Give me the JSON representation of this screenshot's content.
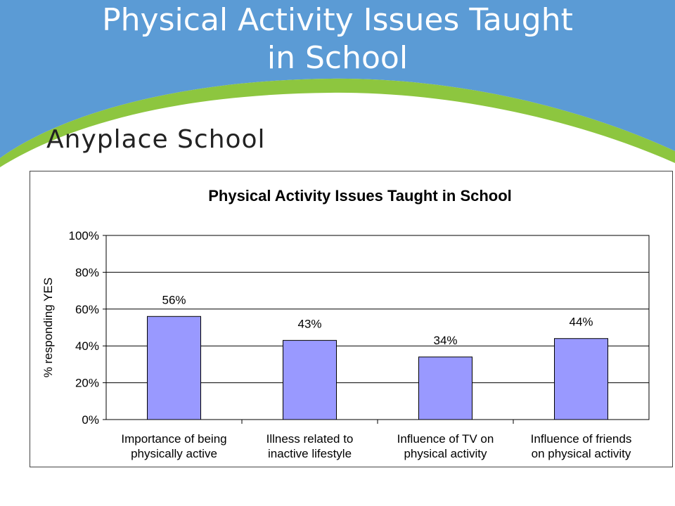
{
  "slide": {
    "title_line1": "Physical Activity Issues Taught",
    "title_line2": "in School",
    "subtitle": "Anyplace School",
    "colors": {
      "header_blue": "#5b9bd5",
      "swoosh_green": "#8dc63f",
      "bar_fill": "#9999ff"
    }
  },
  "chart_data": {
    "type": "bar",
    "title": "Physical Activity Issues Taught in School",
    "ylabel": "% responding YES",
    "xlabel": "",
    "ylim": [
      0,
      100
    ],
    "yticks": [
      0,
      20,
      40,
      60,
      80,
      100
    ],
    "ytick_labels": [
      "0%",
      "20%",
      "40%",
      "60%",
      "80%",
      "100%"
    ],
    "categories": [
      [
        "Importance of being",
        "physically active"
      ],
      [
        "Illness related to",
        "inactive lifestyle"
      ],
      [
        "Influence of TV on",
        "physical activity"
      ],
      [
        "Influence of friends",
        "on physical activity"
      ]
    ],
    "values": [
      56,
      43,
      34,
      44
    ],
    "data_labels": [
      "56%",
      "43%",
      "34%",
      "44%"
    ],
    "grid": true,
    "legend": "none"
  }
}
